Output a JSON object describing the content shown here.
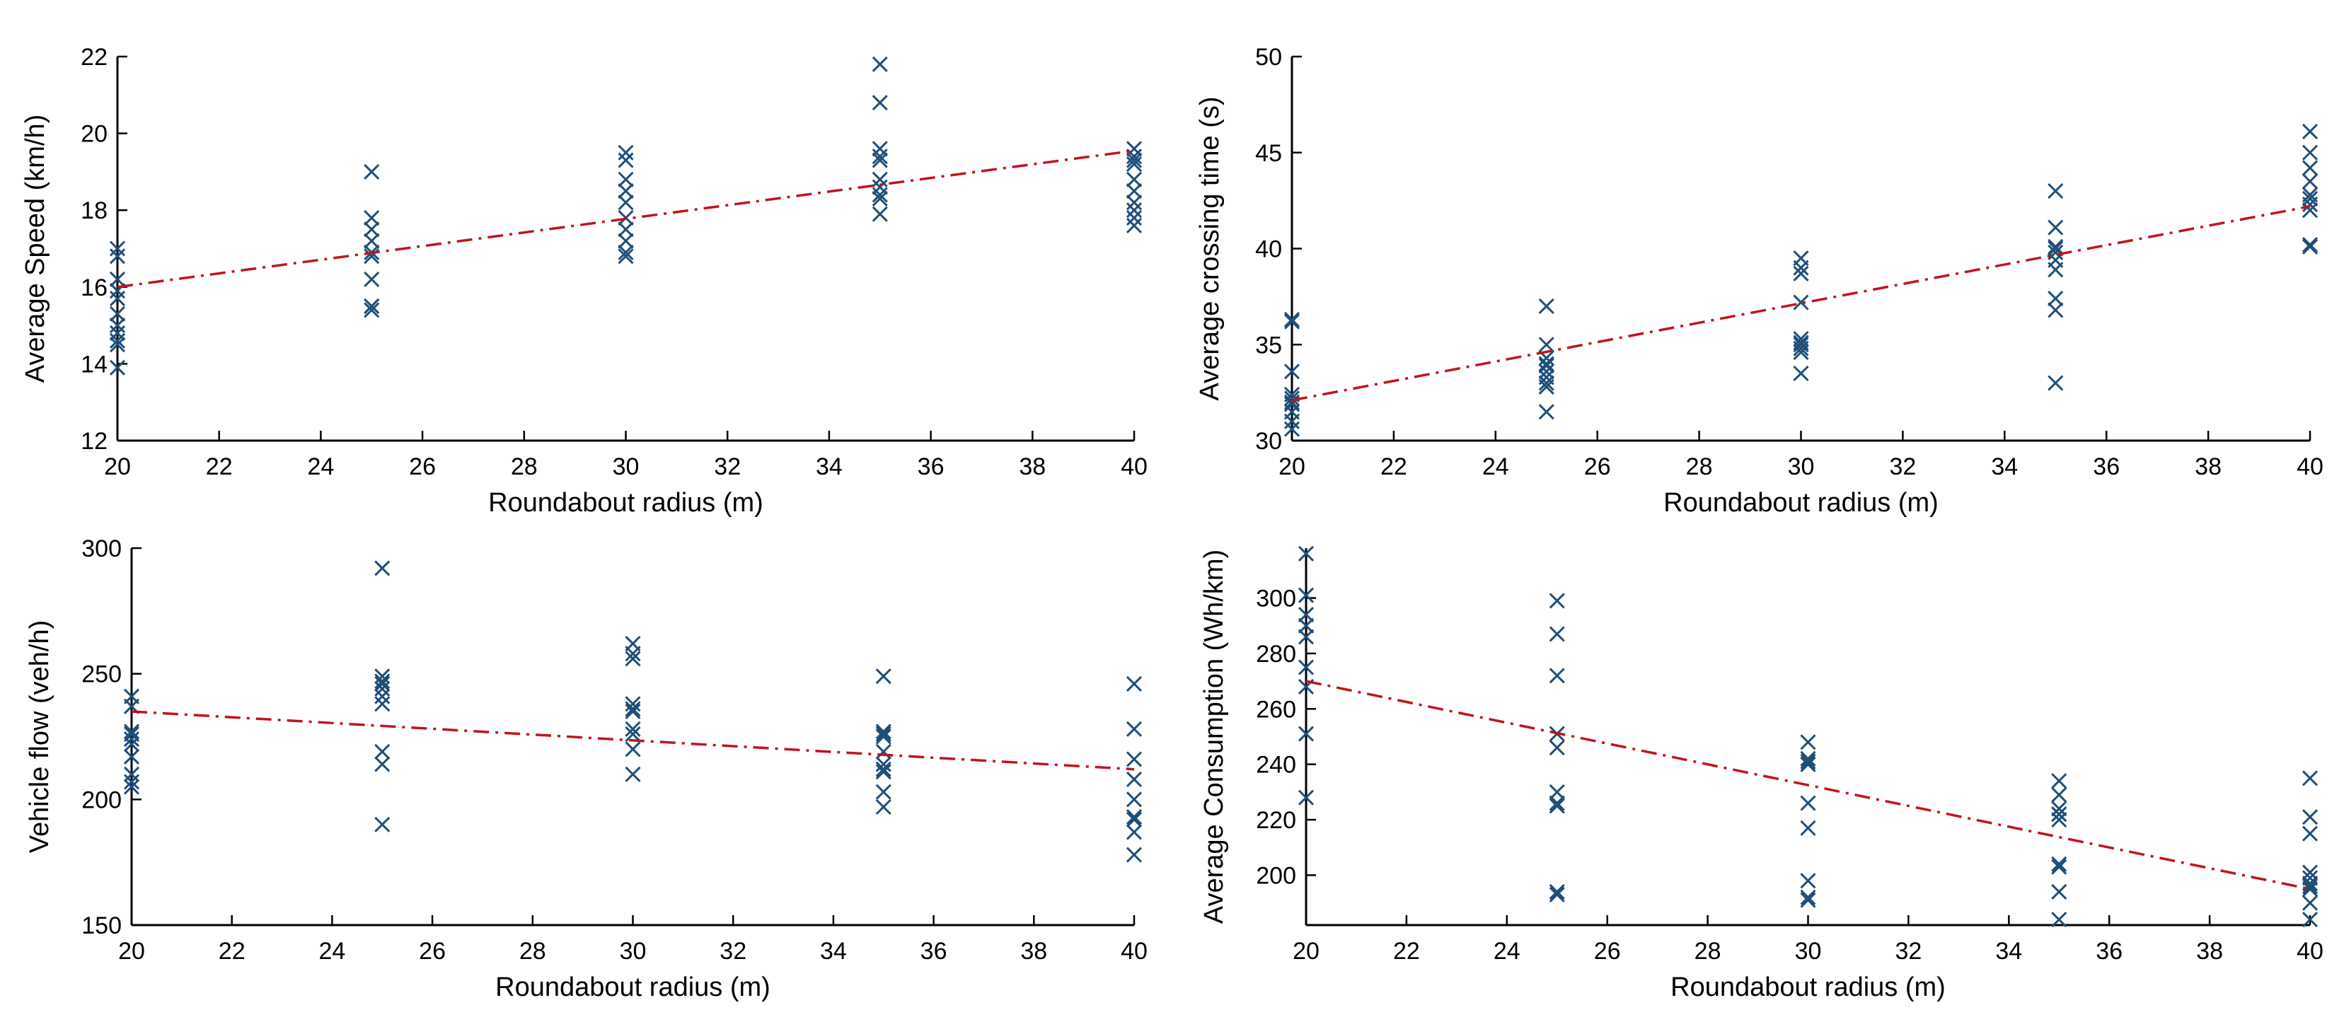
{
  "colors": {
    "marker": "#1f4e79",
    "trend": "#c0141c",
    "axis": "#000000",
    "background": "#ffffff"
  },
  "chart_data": [
    {
      "type": "scatter",
      "id": "speed",
      "title": "",
      "xlabel": "Roundabout radius (m)",
      "ylabel": "Average Speed (km/h)",
      "xlim": [
        20,
        40
      ],
      "ylim": [
        12,
        22
      ],
      "xticks": [
        20,
        22,
        24,
        26,
        28,
        30,
        32,
        34,
        36,
        38,
        40
      ],
      "yticks": [
        12,
        14,
        16,
        18,
        20,
        22
      ],
      "xtick_labels": [
        "20",
        "22",
        "24",
        "26",
        "28",
        "30",
        "32",
        "34",
        "36",
        "38",
        "40"
      ],
      "ytick_labels": [
        "12",
        "14",
        "16",
        "18",
        "20",
        "22"
      ],
      "marker": "x",
      "points": {
        "x": [
          20,
          20,
          20,
          20,
          20,
          20,
          20,
          20,
          20,
          20,
          20,
          25,
          25,
          25,
          25,
          25,
          25,
          25,
          25,
          25,
          25,
          30,
          30,
          30,
          30,
          30,
          30,
          30,
          30,
          30,
          30,
          35,
          35,
          35,
          35,
          35,
          35,
          35,
          35,
          35,
          35,
          40,
          40,
          40,
          40,
          40,
          40,
          40,
          40,
          40,
          40
        ],
        "y": [
          17.0,
          16.8,
          16.2,
          15.9,
          15.7,
          15.3,
          15.0,
          14.8,
          14.6,
          14.5,
          13.9,
          19.0,
          17.8,
          17.5,
          17.2,
          16.9,
          16.8,
          16.2,
          15.5,
          15.4,
          15.5,
          19.5,
          19.3,
          18.8,
          18.5,
          18.2,
          17.8,
          17.5,
          17.2,
          16.9,
          16.8,
          21.8,
          20.8,
          19.6,
          19.4,
          19.3,
          18.8,
          18.6,
          18.4,
          18.3,
          17.9,
          19.6,
          19.4,
          19.3,
          19.2,
          18.8,
          18.5,
          18.2,
          17.8,
          17.6,
          18.0
        ]
      },
      "trend_line": {
        "x": [
          20,
          40
        ],
        "y": [
          16.0,
          19.55
        ],
        "style": "dash-dot"
      }
    },
    {
      "type": "scatter",
      "id": "crossing",
      "title": "",
      "xlabel": "Roundabout radius (m)",
      "ylabel": "Average crossing time (s)",
      "xlim": [
        20,
        40
      ],
      "ylim": [
        30,
        50
      ],
      "xticks": [
        20,
        22,
        24,
        26,
        28,
        30,
        32,
        34,
        36,
        38,
        40
      ],
      "yticks": [
        30,
        35,
        40,
        45,
        50
      ],
      "xtick_labels": [
        "20",
        "22",
        "24",
        "26",
        "28",
        "30",
        "32",
        "34",
        "36",
        "38",
        "40"
      ],
      "ytick_labels": [
        "30",
        "35",
        "40",
        "45",
        "50"
      ],
      "marker": "x",
      "points": {
        "x": [
          20,
          20,
          20,
          20,
          20,
          20,
          20,
          20,
          20,
          20,
          25,
          25,
          25,
          25,
          25,
          25,
          25,
          25,
          25,
          25,
          30,
          30,
          30,
          30,
          30,
          30,
          30,
          30,
          30,
          30,
          35,
          35,
          35,
          35,
          35,
          35,
          35,
          35,
          35,
          35,
          40,
          40,
          40,
          40,
          40,
          40,
          40,
          40,
          40,
          40
        ],
        "y": [
          36.3,
          36.2,
          33.6,
          32.4,
          32.2,
          31.9,
          31.5,
          31.0,
          30.6,
          32.0,
          37.0,
          35.0,
          34.3,
          33.9,
          33.6,
          33.3,
          33.0,
          32.8,
          31.5,
          34.0,
          39.5,
          39.0,
          38.7,
          37.2,
          35.3,
          35.0,
          34.8,
          34.6,
          33.5,
          35.1,
          43.0,
          41.1,
          40.1,
          40.0,
          39.4,
          38.9,
          37.4,
          36.8,
          33.0,
          39.8,
          46.1,
          45.0,
          44.2,
          43.5,
          42.8,
          42.6,
          42.3,
          42.0,
          40.2,
          40.1
        ]
      },
      "trend_line": {
        "x": [
          20,
          40
        ],
        "y": [
          32.1,
          42.2
        ],
        "style": "dash-dot"
      }
    },
    {
      "type": "scatter",
      "id": "flow",
      "title": "",
      "xlabel": "Roundabout radius (m)",
      "ylabel": "Vehicle flow (veh/h)",
      "xlim": [
        20,
        40
      ],
      "ylim": [
        150,
        300
      ],
      "xticks": [
        20,
        22,
        24,
        26,
        28,
        30,
        32,
        34,
        36,
        38,
        40
      ],
      "yticks": [
        150,
        200,
        250,
        300
      ],
      "xtick_labels": [
        "20",
        "22",
        "24",
        "26",
        "28",
        "30",
        "32",
        "34",
        "36",
        "38",
        "40"
      ],
      "ytick_labels": [
        "150",
        "200",
        "250",
        "300"
      ],
      "marker": "x",
      "points": {
        "x": [
          20,
          20,
          20,
          20,
          20,
          20,
          20,
          20,
          20,
          20,
          25,
          25,
          25,
          25,
          25,
          25,
          25,
          25,
          25,
          25,
          30,
          30,
          30,
          30,
          30,
          30,
          30,
          30,
          30,
          30,
          35,
          35,
          35,
          35,
          35,
          35,
          35,
          35,
          35,
          35,
          40,
          40,
          40,
          40,
          40,
          40,
          40,
          40,
          40,
          40
        ],
        "y": [
          241,
          237,
          227,
          224,
          222,
          217,
          210,
          207,
          205,
          226,
          292,
          249,
          247,
          244,
          241,
          238,
          219,
          214,
          190,
          246,
          262,
          258,
          256,
          238,
          236,
          228,
          226,
          220,
          210,
          235,
          249,
          227,
          225,
          219,
          214,
          212,
          211,
          203,
          197,
          226,
          246,
          228,
          216,
          208,
          200,
          193,
          192,
          187,
          178,
          193
        ]
      },
      "trend_line": {
        "x": [
          20,
          40
        ],
        "y": [
          235,
          212
        ],
        "style": "dash-dot"
      }
    },
    {
      "type": "scatter",
      "id": "consumption",
      "title": "",
      "xlabel": "Roundabout radius (m)",
      "ylabel": "Average Consumption (Wh/km)",
      "xlim": [
        20,
        40
      ],
      "ylim": [
        182,
        318
      ],
      "xticks": [
        20,
        22,
        24,
        26,
        28,
        30,
        32,
        34,
        36,
        38,
        40
      ],
      "yticks": [
        200,
        220,
        240,
        260,
        280,
        300
      ],
      "xtick_labels": [
        "20",
        "22",
        "24",
        "26",
        "28",
        "30",
        "32",
        "34",
        "36",
        "38",
        "40"
      ],
      "ytick_labels": [
        "200",
        "220",
        "240",
        "260",
        "280",
        "300"
      ],
      "marker": "x",
      "points": {
        "x": [
          20,
          20,
          20,
          20,
          20,
          20,
          20,
          20,
          20,
          20,
          25,
          25,
          25,
          25,
          25,
          25,
          25,
          25,
          25,
          25,
          30,
          30,
          30,
          30,
          30,
          30,
          30,
          30,
          30,
          30,
          35,
          35,
          35,
          35,
          35,
          35,
          35,
          35,
          35,
          35,
          40,
          40,
          40,
          40,
          40,
          40,
          40,
          40,
          40,
          40
        ],
        "y": [
          316,
          301,
          301,
          294,
          290,
          286,
          275,
          268,
          251,
          228,
          299,
          287,
          272,
          251,
          246,
          230,
          226,
          225,
          194,
          193,
          248,
          242,
          241,
          240,
          226,
          217,
          198,
          192,
          191,
          240,
          234,
          229,
          224,
          222,
          220,
          204,
          203,
          194,
          184,
          222,
          235,
          221,
          215,
          201,
          197,
          196,
          190,
          184,
          199,
          195
        ]
      },
      "trend_line": {
        "x": [
          20,
          40
        ],
        "y": [
          270,
          195
        ],
        "style": "dash-dot"
      }
    }
  ]
}
